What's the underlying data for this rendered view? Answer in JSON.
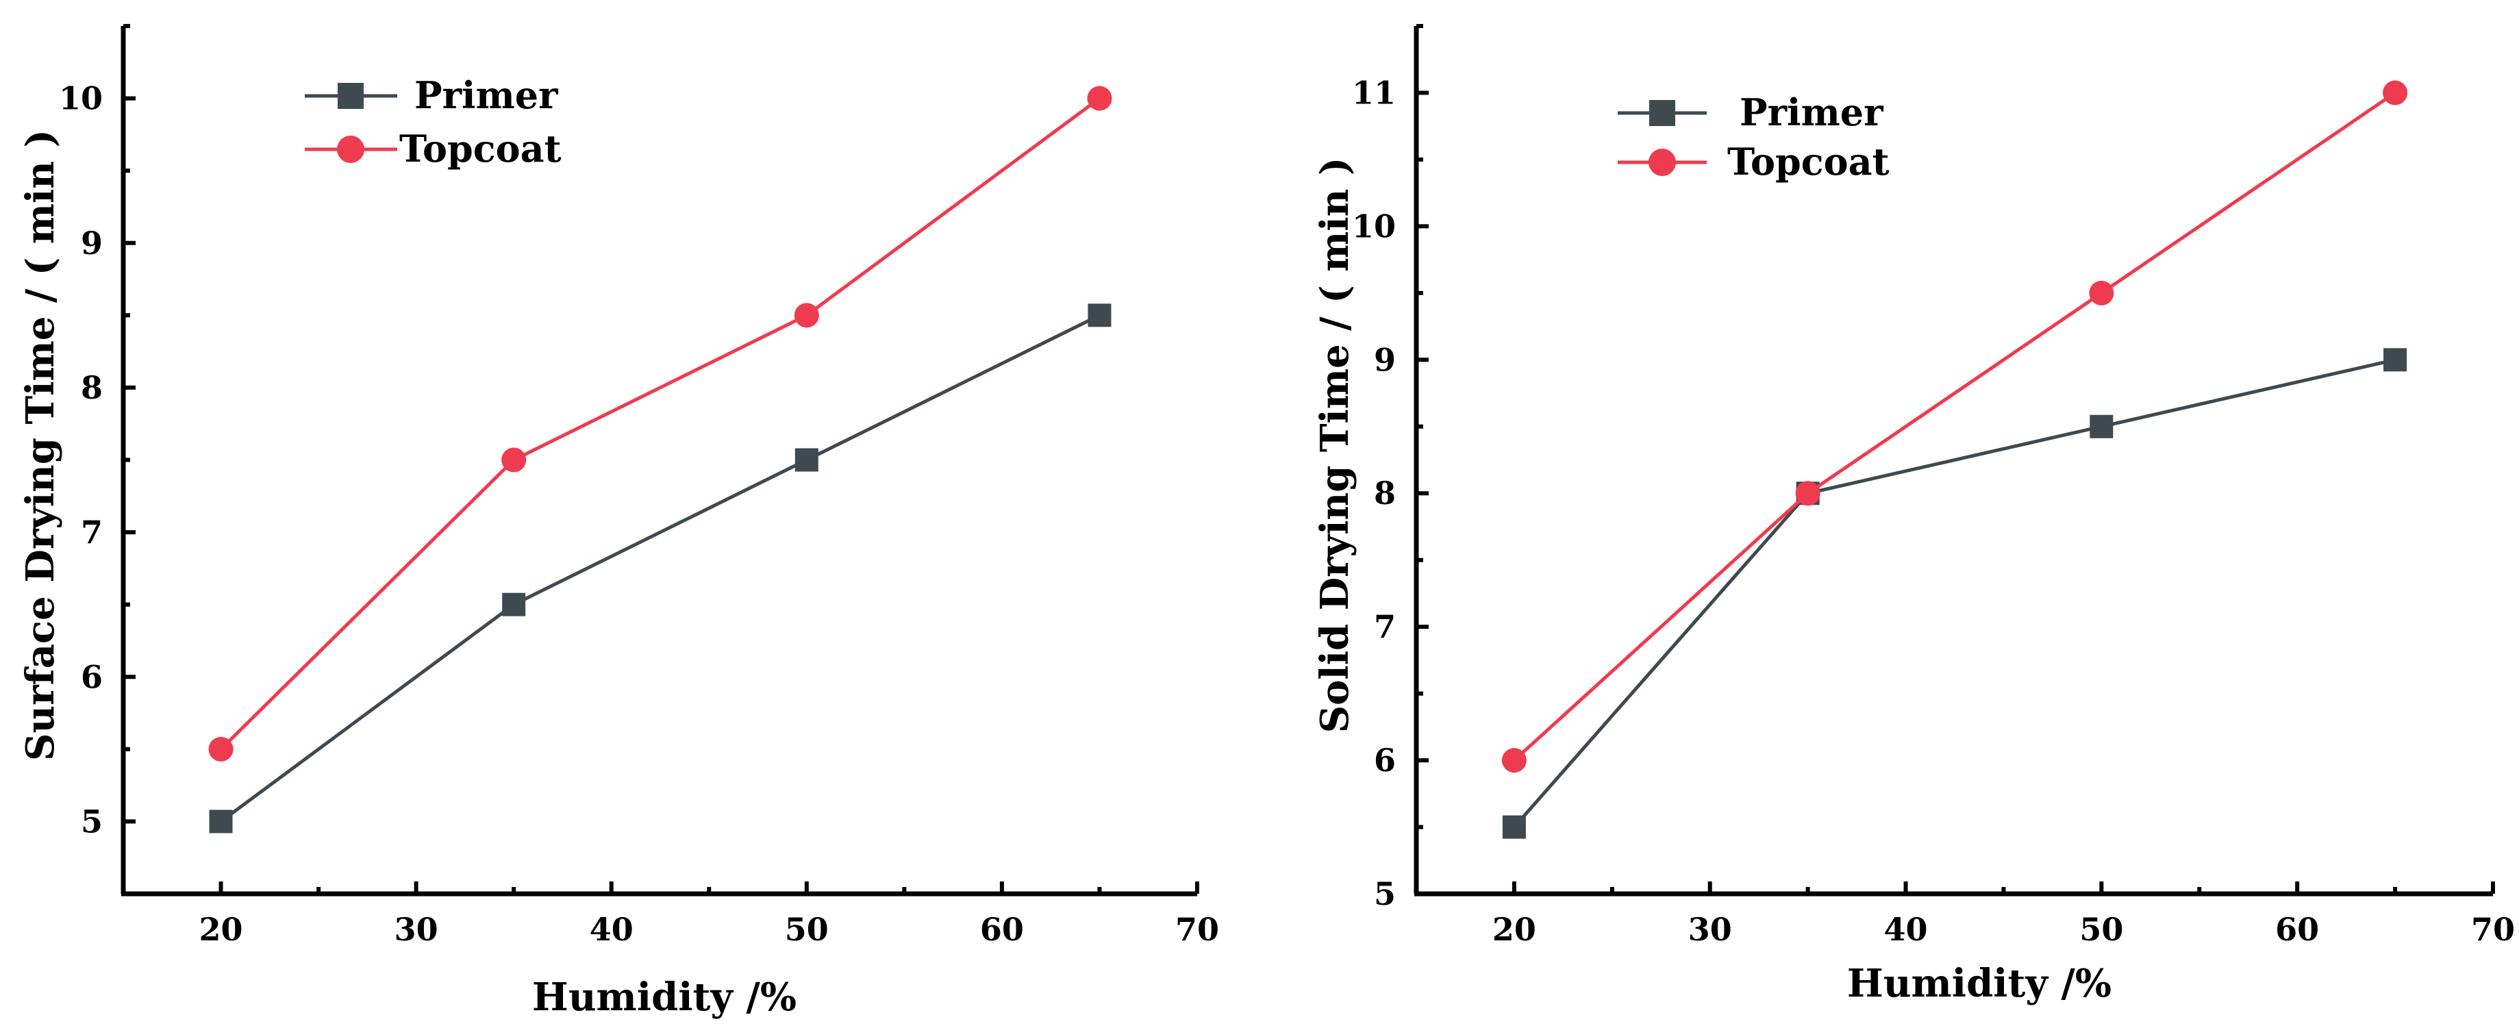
{
  "colors": {
    "primer": "#3e4a4f",
    "topcoat": "#ef3b4f",
    "axis": "#000000"
  },
  "chart_data": [
    {
      "type": "line",
      "id": "left",
      "xlabel": "Humidity /%",
      "ylabel": "Surface Drying Time / ( min )",
      "xlim": [
        15,
        70
      ],
      "ylim": [
        4.5,
        10.5
      ],
      "xticks": [
        20,
        30,
        40,
        50,
        60,
        70
      ],
      "yticks": [
        5,
        6,
        7,
        8,
        9,
        10
      ],
      "x": [
        20,
        35,
        50,
        65
      ],
      "legend_position": "top-left",
      "series": [
        {
          "name": "Primer",
          "marker": "square",
          "values": [
            5,
            6.5,
            7.5,
            8.5
          ]
        },
        {
          "name": "Topcoat",
          "marker": "circle",
          "values": [
            5.5,
            7.5,
            8.5,
            10
          ]
        }
      ]
    },
    {
      "type": "line",
      "id": "right",
      "xlabel": "Humidity /%",
      "ylabel": "Solid Drying Time / ( min )",
      "xlim": [
        15,
        70
      ],
      "ylim": [
        5,
        11.5
      ],
      "xticks": [
        20,
        30,
        40,
        50,
        60,
        70
      ],
      "yticks": [
        5,
        6,
        7,
        8,
        9,
        10,
        11
      ],
      "x": [
        20,
        35,
        50,
        65
      ],
      "legend_position": "top-left",
      "series": [
        {
          "name": "Primer",
          "marker": "square",
          "values": [
            5.5,
            8,
            8.5,
            9
          ]
        },
        {
          "name": "Topcoat",
          "marker": "circle",
          "values": [
            6,
            8,
            9.5,
            11
          ]
        }
      ]
    }
  ]
}
